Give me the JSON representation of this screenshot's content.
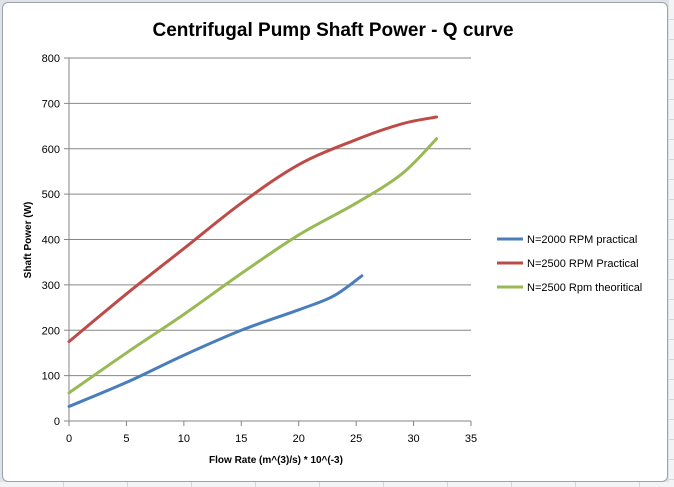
{
  "chart_data": {
    "type": "line",
    "title": "Centrifugal Pump Shaft Power - Q curve",
    "xlabel": "Flow Rate (m^(3)/s) * 10^(-3)",
    "ylabel": "Shaft Power (W)",
    "xlim": [
      0,
      35
    ],
    "ylim": [
      0,
      800
    ],
    "x_ticks": [
      "0",
      "5",
      "10",
      "15",
      "20",
      "25",
      "30",
      "35"
    ],
    "y_ticks": [
      "0",
      "100",
      "200",
      "300",
      "400",
      "500",
      "600",
      "700",
      "800"
    ],
    "x_tick_values": [
      0,
      5,
      10,
      15,
      20,
      25,
      30,
      35
    ],
    "y_tick_values": [
      0,
      100,
      200,
      300,
      400,
      500,
      600,
      700,
      800
    ],
    "grid": "horizontal",
    "legend_position": "right",
    "series": [
      {
        "name": "N=2000 RPM practical",
        "color": "#4a7ebb",
        "x": [
          0,
          5,
          10,
          15,
          20,
          23,
          25.5
        ],
        "y": [
          32,
          85,
          145,
          200,
          245,
          275,
          320
        ]
      },
      {
        "name": "N=2500 RPM Practical",
        "color": "#be4b48",
        "x": [
          0,
          5,
          10,
          15,
          20,
          25,
          29,
          32
        ],
        "y": [
          175,
          280,
          380,
          480,
          565,
          620,
          655,
          670
        ]
      },
      {
        "name": "N=2500 Rpm theoritical",
        "color": "#98b954",
        "x": [
          0,
          5,
          10,
          15,
          20,
          25,
          29,
          32
        ],
        "y": [
          62,
          150,
          235,
          325,
          410,
          480,
          545,
          622
        ]
      }
    ]
  }
}
